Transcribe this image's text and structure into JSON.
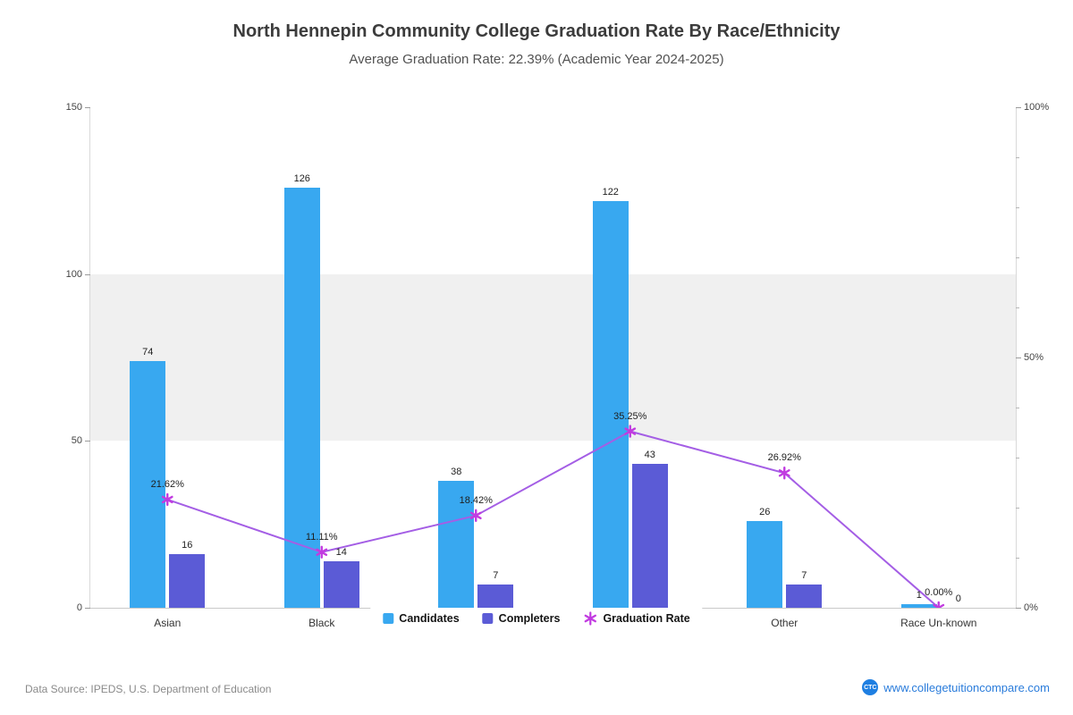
{
  "title": "North Hennepin Community College Graduation Rate By Race/Ethnicity",
  "subtitle": "Average Graduation Rate: 22.39% (Academic Year 2024-2025)",
  "footer": {
    "source": "Data Source: IPEDS, U.S. Department of Education",
    "logo_text": "CTC",
    "website": "www.collegetuitioncompare.com"
  },
  "chart_data": {
    "type": "bar",
    "subtype": "grouped-bar-with-line-overlay-dual-axis",
    "title": "North Hennepin Community College Graduation Rate By Race/Ethnicity",
    "subtitle": "Average Graduation Rate: 22.39% (Academic Year 2024-2025)",
    "categories": [
      "Asian",
      "Black",
      "",
      "",
      "Other",
      "Race Un-known"
    ],
    "series": [
      {
        "name": "Candidates",
        "type": "bar",
        "axis": "left",
        "color": "#38A8F0",
        "values": [
          74,
          126,
          38,
          122,
          26,
          1
        ]
      },
      {
        "name": "Completers",
        "type": "bar",
        "axis": "left",
        "color": "#5B5BD6",
        "values": [
          16,
          14,
          7,
          43,
          7,
          0
        ]
      },
      {
        "name": "Graduation Rate",
        "type": "line",
        "axis": "right",
        "color": "#A45EE5",
        "marker_color": "#C13BE0",
        "values": [
          21.62,
          11.11,
          18.42,
          35.25,
          26.92,
          0
        ],
        "labels": [
          "21.62%",
          "11.11%",
          "18.42%",
          "35.25%",
          "26.92%",
          "0.00%"
        ]
      }
    ],
    "left_axis": {
      "min": 0,
      "max": 150,
      "ticks": [
        0,
        50,
        100,
        150
      ]
    },
    "right_axis": {
      "min": 0,
      "max": 100,
      "ticks": [
        "0%",
        "50%",
        "100%"
      ],
      "minor_step": 10
    },
    "band": {
      "from": 50,
      "to": 100,
      "color": "#F0F0F0"
    },
    "legend": [
      "Candidates",
      "Completers",
      "Graduation Rate"
    ],
    "legend_position": "bottom-center",
    "grid": false
  }
}
